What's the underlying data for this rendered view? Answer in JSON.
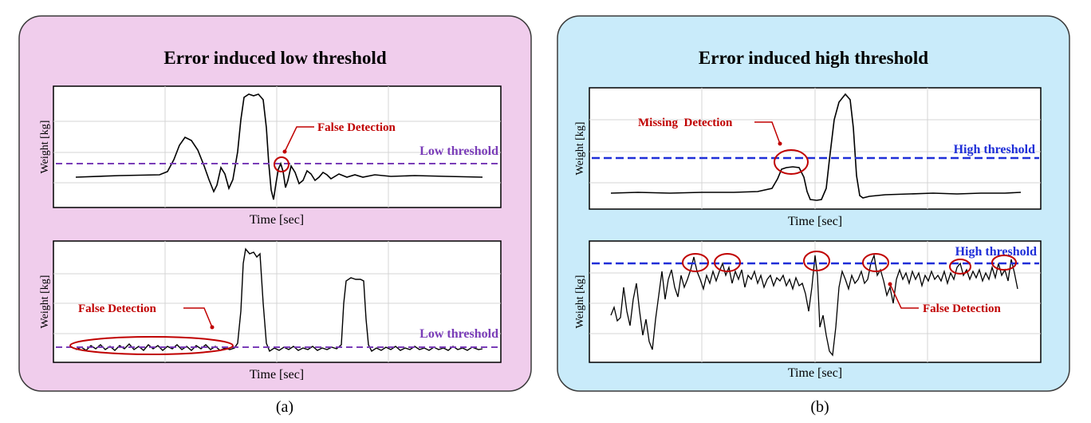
{
  "panels": [
    {
      "id": "a",
      "title": "Error induced low threshold",
      "caption": "(a)",
      "background": "#f0cdec",
      "plots": [
        {
          "ylabel": "Weight [kg]",
          "xlabel": "Time [sec]",
          "threshold_label": "Low threshold",
          "annotation": "False Detection"
        },
        {
          "ylabel": "Weight [kg]",
          "xlabel": "Time [sec]",
          "threshold_label": "Low threshold",
          "annotation": "False Detection"
        }
      ]
    },
    {
      "id": "b",
      "title": "Error induced high threshold",
      "caption": "(b)",
      "background": "#c9ebfa",
      "plots": [
        {
          "ylabel": "Weight [kg]",
          "xlabel": "Time [sec]",
          "threshold_label": "High threshold",
          "annotation": "Missing  Detection"
        },
        {
          "ylabel": "Weight [kg]",
          "xlabel": "Time [sec]",
          "threshold_label": "High threshold",
          "annotation": "False Detection"
        }
      ]
    }
  ],
  "colors": {
    "low_threshold": "#7a3db8",
    "high_threshold": "#1f2fd8",
    "annotation": "#c00000",
    "signal": "#000000"
  }
}
